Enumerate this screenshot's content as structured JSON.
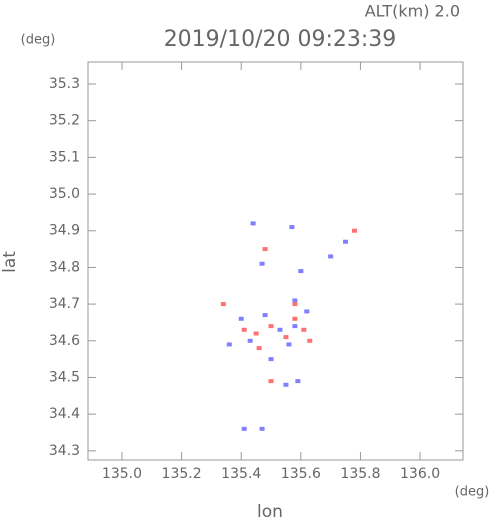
{
  "chart_data": {
    "type": "scatter",
    "title": "2019/10/20 09:23:39",
    "subtitle": "ALT(km) 2.0",
    "x_label": "lon",
    "y_label": "lat",
    "x_unit": "(deg)",
    "y_unit": "(deg)",
    "xlim": [
      134.886,
      136.144
    ],
    "ylim": [
      34.275,
      35.36
    ],
    "xticks": [
      {
        "value": 135,
        "label": "135.0"
      },
      135.2,
      135.4,
      135.6,
      135.8,
      {
        "value": 136,
        "label": "136.0"
      }
    ],
    "yticks": [
      34.3,
      34.4,
      34.5,
      34.6,
      34.7,
      34.8,
      34.9,
      {
        "value": 35,
        "label": "35.0"
      },
      35.1,
      35.2,
      35.3
    ],
    "series": [
      {
        "color": "#8080ff",
        "x": [
          135.44,
          135.57,
          135.75,
          135.6,
          135.7,
          135.47,
          135.58,
          135.4,
          135.48,
          135.53,
          135.58,
          135.43,
          135.56,
          135.5,
          135.59,
          135.55,
          135.41,
          135.47,
          135.36,
          135.62
        ],
        "y": [
          34.92,
          34.91,
          34.87,
          34.79,
          34.83,
          34.81,
          34.71,
          34.66,
          34.67,
          34.63,
          34.64,
          34.6,
          34.59,
          34.55,
          34.49,
          34.48,
          34.36,
          34.36,
          34.59,
          34.68
        ]
      },
      {
        "color": "#ff7070",
        "x": [
          135.78,
          135.48,
          135.34,
          135.5,
          135.58,
          135.41,
          135.55,
          135.46,
          135.63,
          135.5,
          135.58,
          135.45,
          135.61
        ],
        "y": [
          34.9,
          34.85,
          34.7,
          34.64,
          34.66,
          34.63,
          34.61,
          34.58,
          34.6,
          34.49,
          34.7,
          34.62,
          34.63
        ]
      }
    ]
  }
}
